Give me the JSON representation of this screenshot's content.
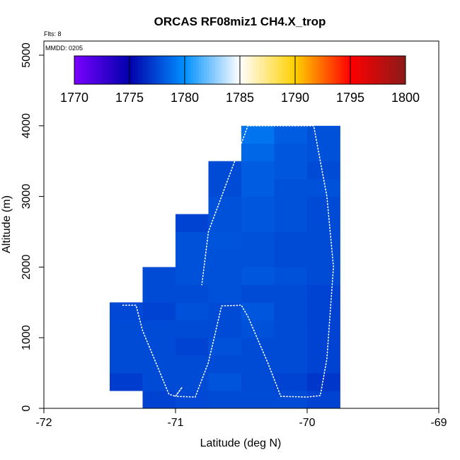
{
  "chart_data": {
    "type": "heatmap",
    "title": "ORCAS RF08miz1 CH4.X_trop",
    "xlabel": "Latitude (deg N)",
    "ylabel": "Altitude (m)",
    "xlim": [
      -72,
      -69
    ],
    "ylim": [
      0,
      5200
    ],
    "x_ticks": [
      "-72",
      "-71",
      "-70",
      "-69"
    ],
    "y_ticks": [
      "0",
      "1000",
      "2000",
      "3000",
      "4000",
      "5000"
    ],
    "notes": [
      "Flts: 8",
      "MMDD: 0205"
    ],
    "colorbar": {
      "min": 1770,
      "max": 1800,
      "tick_values": [
        1770,
        1775,
        1780,
        1785,
        1790,
        1795,
        1800
      ],
      "tick_labels": [
        "1770",
        "1775",
        "1780",
        "1785",
        "1790",
        "1795",
        "1800"
      ],
      "stops": [
        "#7a00ff",
        "#0000aa",
        "#0090ff",
        "#ffffff",
        "#ffd000",
        "#ff0000",
        "#8b1a1a"
      ]
    },
    "cell_size": {
      "dlat": 0.25,
      "dalt": 250
    },
    "cells": [
      {
        "lat": -71.375,
        "alt": 375,
        "value": 1777.1
      },
      {
        "lat": -71.375,
        "alt": 625,
        "value": 1777.6
      },
      {
        "lat": -71.375,
        "alt": 875,
        "value": 1777.6
      },
      {
        "lat": -71.375,
        "alt": 1125,
        "value": 1777.6
      },
      {
        "lat": -71.375,
        "alt": 1375,
        "value": 1777.5
      },
      {
        "lat": -71.125,
        "alt": 125,
        "value": 1777.3
      },
      {
        "lat": -71.125,
        "alt": 375,
        "value": 1777.6
      },
      {
        "lat": -71.125,
        "alt": 625,
        "value": 1777.6
      },
      {
        "lat": -71.125,
        "alt": 875,
        "value": 1777.6
      },
      {
        "lat": -71.125,
        "alt": 1125,
        "value": 1777.6
      },
      {
        "lat": -71.125,
        "alt": 1375,
        "value": 1777.3
      },
      {
        "lat": -71.125,
        "alt": 1625,
        "value": 1777.6
      },
      {
        "lat": -71.125,
        "alt": 1875,
        "value": 1777.6
      },
      {
        "lat": -70.875,
        "alt": 125,
        "value": 1777.5
      },
      {
        "lat": -70.875,
        "alt": 375,
        "value": 1777.6
      },
      {
        "lat": -70.875,
        "alt": 625,
        "value": 1777.6
      },
      {
        "lat": -70.875,
        "alt": 875,
        "value": 1777.3
      },
      {
        "lat": -70.875,
        "alt": 1125,
        "value": 1777.6
      },
      {
        "lat": -70.875,
        "alt": 1375,
        "value": 1777.8
      },
      {
        "lat": -70.875,
        "alt": 1625,
        "value": 1777.6
      },
      {
        "lat": -70.875,
        "alt": 1875,
        "value": 1777.8
      },
      {
        "lat": -70.875,
        "alt": 2125,
        "value": 1777.8
      },
      {
        "lat": -70.875,
        "alt": 2375,
        "value": 1777.8
      },
      {
        "lat": -70.875,
        "alt": 2625,
        "value": 1777.3
      },
      {
        "lat": -70.625,
        "alt": 125,
        "value": 1777.6
      },
      {
        "lat": -70.625,
        "alt": 375,
        "value": 1777.9
      },
      {
        "lat": -70.625,
        "alt": 625,
        "value": 1777.6
      },
      {
        "lat": -70.625,
        "alt": 875,
        "value": 1777.8
      },
      {
        "lat": -70.625,
        "alt": 1125,
        "value": 1777.6
      },
      {
        "lat": -70.625,
        "alt": 1375,
        "value": 1777.6
      },
      {
        "lat": -70.625,
        "alt": 1625,
        "value": 1777.8
      },
      {
        "lat": -70.625,
        "alt": 1875,
        "value": 1777.8
      },
      {
        "lat": -70.625,
        "alt": 2125,
        "value": 1777.8
      },
      {
        "lat": -70.625,
        "alt": 2375,
        "value": 1777.9
      },
      {
        "lat": -70.625,
        "alt": 2625,
        "value": 1777.8
      },
      {
        "lat": -70.625,
        "alt": 2875,
        "value": 1777.8
      },
      {
        "lat": -70.625,
        "alt": 3125,
        "value": 1777.6
      },
      {
        "lat": -70.625,
        "alt": 3375,
        "value": 1777.6
      },
      {
        "lat": -70.375,
        "alt": 125,
        "value": 1777.6
      },
      {
        "lat": -70.375,
        "alt": 375,
        "value": 1777.6
      },
      {
        "lat": -70.375,
        "alt": 625,
        "value": 1777.6
      },
      {
        "lat": -70.375,
        "alt": 875,
        "value": 1777.6
      },
      {
        "lat": -70.375,
        "alt": 1125,
        "value": 1777.8
      },
      {
        "lat": -70.375,
        "alt": 1375,
        "value": 1778.0
      },
      {
        "lat": -70.375,
        "alt": 1625,
        "value": 1777.6
      },
      {
        "lat": -70.375,
        "alt": 1875,
        "value": 1778.0
      },
      {
        "lat": -70.375,
        "alt": 2125,
        "value": 1777.8
      },
      {
        "lat": -70.375,
        "alt": 2375,
        "value": 1777.8
      },
      {
        "lat": -70.375,
        "alt": 2625,
        "value": 1778.0
      },
      {
        "lat": -70.375,
        "alt": 2875,
        "value": 1778.0
      },
      {
        "lat": -70.375,
        "alt": 3125,
        "value": 1778.2
      },
      {
        "lat": -70.375,
        "alt": 3375,
        "value": 1778.2
      },
      {
        "lat": -70.375,
        "alt": 3625,
        "value": 1778.6
      },
      {
        "lat": -70.375,
        "alt": 3875,
        "value": 1779.0
      },
      {
        "lat": -70.125,
        "alt": 125,
        "value": 1777.6
      },
      {
        "lat": -70.125,
        "alt": 375,
        "value": 1777.3
      },
      {
        "lat": -70.125,
        "alt": 625,
        "value": 1777.6
      },
      {
        "lat": -70.125,
        "alt": 875,
        "value": 1777.6
      },
      {
        "lat": -70.125,
        "alt": 1125,
        "value": 1777.6
      },
      {
        "lat": -70.125,
        "alt": 1375,
        "value": 1777.6
      },
      {
        "lat": -70.125,
        "alt": 1625,
        "value": 1777.6
      },
      {
        "lat": -70.125,
        "alt": 1875,
        "value": 1777.8
      },
      {
        "lat": -70.125,
        "alt": 2125,
        "value": 1777.6
      },
      {
        "lat": -70.125,
        "alt": 2375,
        "value": 1777.6
      },
      {
        "lat": -70.125,
        "alt": 2625,
        "value": 1777.8
      },
      {
        "lat": -70.125,
        "alt": 2875,
        "value": 1777.8
      },
      {
        "lat": -70.125,
        "alt": 3125,
        "value": 1777.8
      },
      {
        "lat": -70.125,
        "alt": 3375,
        "value": 1778.0
      },
      {
        "lat": -70.125,
        "alt": 3625,
        "value": 1778.0
      },
      {
        "lat": -70.125,
        "alt": 3875,
        "value": 1778.2
      },
      {
        "lat": -69.875,
        "alt": 125,
        "value": 1777.3
      },
      {
        "lat": -69.875,
        "alt": 375,
        "value": 1776.9
      },
      {
        "lat": -69.875,
        "alt": 625,
        "value": 1777.3
      },
      {
        "lat": -69.875,
        "alt": 875,
        "value": 1777.3
      },
      {
        "lat": -69.875,
        "alt": 1125,
        "value": 1777.3
      },
      {
        "lat": -69.875,
        "alt": 1375,
        "value": 1777.3
      },
      {
        "lat": -69.875,
        "alt": 1625,
        "value": 1777.3
      },
      {
        "lat": -69.875,
        "alt": 1875,
        "value": 1777.6
      },
      {
        "lat": -69.875,
        "alt": 2125,
        "value": 1777.6
      },
      {
        "lat": -69.875,
        "alt": 2375,
        "value": 1777.6
      },
      {
        "lat": -69.875,
        "alt": 2625,
        "value": 1777.6
      },
      {
        "lat": -69.875,
        "alt": 2875,
        "value": 1777.6
      },
      {
        "lat": -69.875,
        "alt": 3125,
        "value": 1777.8
      },
      {
        "lat": -69.875,
        "alt": 3375,
        "value": 1777.6
      },
      {
        "lat": -69.875,
        "alt": 3625,
        "value": 1777.8
      },
      {
        "lat": -69.875,
        "alt": 3875,
        "value": 1777.8
      }
    ],
    "flight_track": [
      [
        -71.4,
        1460
      ],
      [
        -71.3,
        1460
      ],
      [
        -71.25,
        1100
      ],
      [
        -71.15,
        650
      ],
      [
        -71.05,
        200
      ],
      [
        -71.0,
        170
      ],
      [
        -70.95,
        300
      ],
      [
        -71.0,
        170
      ],
      [
        -70.85,
        160
      ],
      [
        -70.75,
        650
      ],
      [
        -70.65,
        1450
      ],
      [
        -70.5,
        1460
      ],
      [
        -70.45,
        1300
      ],
      [
        -70.3,
        650
      ],
      [
        -70.2,
        170
      ],
      [
        -70.0,
        160
      ],
      [
        -69.9,
        180
      ],
      [
        -69.85,
        700
      ],
      [
        -69.8,
        2000
      ],
      [
        -69.85,
        3000
      ],
      [
        -69.95,
        4000
      ],
      [
        -69.95,
        4000
      ],
      [
        -70.45,
        4000
      ],
      [
        -70.55,
        3500
      ],
      [
        -70.65,
        3000
      ],
      [
        -70.75,
        2500
      ],
      [
        -70.8,
        1750
      ]
    ]
  }
}
